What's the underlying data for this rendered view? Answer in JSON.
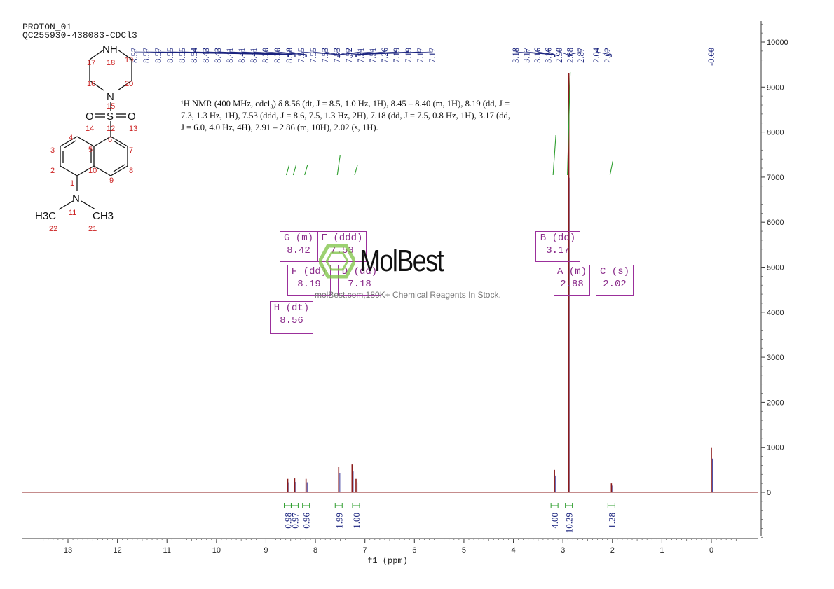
{
  "header": {
    "line1": "PROTON_01",
    "line2": "QC255930-438083-CDCl3"
  },
  "nmr_description": {
    "text": "¹H NMR (400 MHz, cdcl₃) δ 8.56 (dt, J = 8.5, 1.0 Hz, 1H), 8.45 – 8.40 (m, 1H), 8.19 (dd, J = 7.3, 1.3 Hz, 1H), 7.53 (ddd, J = 8.6, 7.5, 1.3 Hz, 2H), 7.18 (dd, J = 7.5, 0.8 Hz, 1H), 3.17 (dd, J = 6.0, 4.0 Hz, 4H), 2.91 – 2.86 (m, 10H), 2.02 (s, 1H)."
  },
  "peak_boxes": [
    {
      "id": "G",
      "line1": "G (m)",
      "line2": "8.42"
    },
    {
      "id": "E",
      "line1": "E (ddd)",
      "line2": "7.53"
    },
    {
      "id": "F",
      "line1": "F (dd)",
      "line2": "8.19"
    },
    {
      "id": "D",
      "line1": "D (dd)",
      "line2": "7.18"
    },
    {
      "id": "H",
      "line1": "H (dt)",
      "line2": "8.56"
    },
    {
      "id": "B",
      "line1": "B (dd)",
      "line2": "3.17"
    },
    {
      "id": "A",
      "line1": "A (m)",
      "line2": "2.88"
    },
    {
      "id": "C",
      "line1": "C (s)",
      "line2": "2.02"
    }
  ],
  "watermark": {
    "brand": "MolBest",
    "tagline": "molBest.com,180K+ Chemical Reagents In Stock."
  },
  "molecule": {
    "atom_labels": [
      "NH",
      "N",
      "S",
      "O",
      "O",
      "N",
      "H3C",
      "CH3"
    ],
    "atom_numbers": [
      "17",
      "18",
      "19",
      "16",
      "20",
      "15",
      "14",
      "12",
      "13",
      "3",
      "4",
      "5",
      "6",
      "7",
      "2",
      "10",
      "8",
      "1",
      "9",
      "11",
      "22",
      "21"
    ]
  },
  "colors": {
    "spectrum": "#8b1a1a",
    "peak_labels": "#1a237e",
    "integral": "#2e9e2e",
    "box": "#9b2f9b",
    "structure_numbers": "#cc2222"
  },
  "chart_data": {
    "type": "line",
    "title": "",
    "xlabel": "f1 (ppm)",
    "ylabel": "",
    "x_reversed": true,
    "xlim": [
      14.0,
      -1.0
    ],
    "ylim": [
      -1000,
      10500
    ],
    "x_ticks": [
      13,
      12,
      11,
      10,
      9,
      8,
      7,
      6,
      5,
      4,
      3,
      2,
      1,
      0
    ],
    "y_ticks": [
      0,
      1000,
      2000,
      3000,
      4000,
      5000,
      6000,
      7000,
      8000,
      9000,
      10000
    ],
    "peak_labels": [
      "8.57",
      "8.57",
      "8.57",
      "8.55",
      "8.55",
      "8.54",
      "8.43",
      "8.43",
      "8.41",
      "8.41",
      "8.41",
      "8.20",
      "8.20",
      "8.18",
      "7.55",
      "7.55",
      "7.53",
      "7.53",
      "7.52",
      "7.51",
      "7.51",
      "7.26",
      "7.19",
      "7.19",
      "7.17",
      "7.17",
      "3.18",
      "3.17",
      "3.16",
      "3.16",
      "2.90",
      "2.88",
      "2.87",
      "2.04",
      "2.02",
      "-0.00"
    ],
    "peaks": [
      {
        "ppm": 8.56,
        "height": 300
      },
      {
        "ppm": 8.42,
        "height": 310
      },
      {
        "ppm": 8.19,
        "height": 300
      },
      {
        "ppm": 7.53,
        "height": 560
      },
      {
        "ppm": 7.26,
        "height": 620
      },
      {
        "ppm": 7.18,
        "height": 300
      },
      {
        "ppm": 3.17,
        "height": 500
      },
      {
        "ppm": 2.88,
        "height": 10500
      },
      {
        "ppm": 2.02,
        "height": 200
      },
      {
        "ppm": 0.0,
        "height": 1000
      }
    ],
    "integrals": [
      {
        "ppm": 8.56,
        "value": "0.98"
      },
      {
        "ppm": 8.42,
        "value": "0.97"
      },
      {
        "ppm": 8.19,
        "value": "0.96"
      },
      {
        "ppm": 7.53,
        "value": "1.99"
      },
      {
        "ppm": 7.18,
        "value": "1.00"
      },
      {
        "ppm": 3.17,
        "value": "4.00"
      },
      {
        "ppm": 2.88,
        "value": "10.29"
      },
      {
        "ppm": 2.02,
        "value": "1.28"
      }
    ]
  }
}
